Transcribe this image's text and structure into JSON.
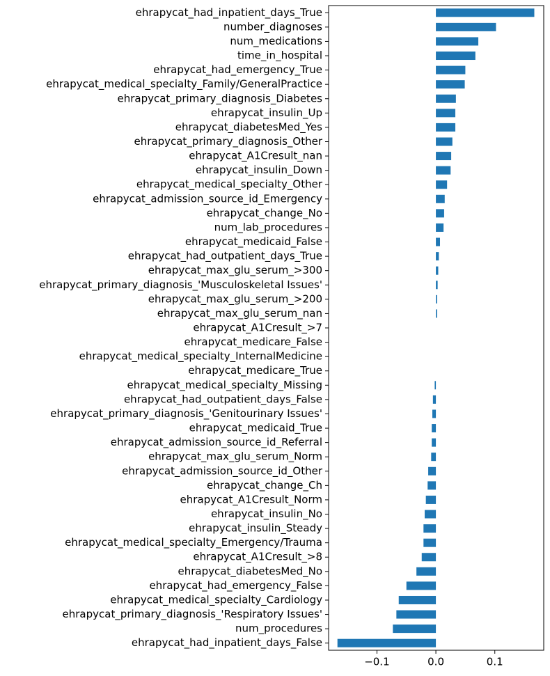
{
  "chart_data": {
    "type": "barh",
    "color": "#1f77b4",
    "categories": [
      "ehrapycat_had_inpatient_days_True",
      "number_diagnoses",
      "num_medications",
      "time_in_hospital",
      "ehrapycat_had_emergency_True",
      "ehrapycat_medical_specialty_Family/GeneralPractice",
      "ehrapycat_primary_diagnosis_Diabetes",
      "ehrapycat_insulin_Up",
      "ehrapycat_diabetesMed_Yes",
      "ehrapycat_primary_diagnosis_Other",
      "ehrapycat_A1Cresult_nan",
      "ehrapycat_insulin_Down",
      "ehrapycat_medical_specialty_Other",
      "ehrapycat_admission_source_id_Emergency",
      "ehrapycat_change_No",
      "num_lab_procedures",
      "ehrapycat_medicaid_False",
      "ehrapycat_had_outpatient_days_True",
      "ehrapycat_max_glu_serum_>300",
      "ehrapycat_primary_diagnosis_'Musculoskeletal Issues'",
      "ehrapycat_max_glu_serum_>200",
      "ehrapycat_max_glu_serum_nan",
      "ehrapycat_A1Cresult_>7",
      "ehrapycat_medicare_False",
      "ehrapycat_medical_specialty_InternalMedicine",
      "ehrapycat_medicare_True",
      "ehrapycat_medical_specialty_Missing",
      "ehrapycat_had_outpatient_days_False",
      "ehrapycat_primary_diagnosis_'Genitourinary Issues'",
      "ehrapycat_medicaid_True",
      "ehrapycat_admission_source_id_Referral",
      "ehrapycat_max_glu_serum_Norm",
      "ehrapycat_admission_source_id_Other",
      "ehrapycat_change_Ch",
      "ehrapycat_A1Cresult_Norm",
      "ehrapycat_insulin_No",
      "ehrapycat_insulin_Steady",
      "ehrapycat_medical_specialty_Emergency/Trauma",
      "ehrapycat_A1Cresult_>8",
      "ehrapycat_diabetesMed_No",
      "ehrapycat_had_emergency_False",
      "ehrapycat_medical_specialty_Cardiology",
      "ehrapycat_primary_diagnosis_'Respiratory Issues'",
      "num_procedures",
      "ehrapycat_had_inpatient_days_False"
    ],
    "values": [
      0.167,
      0.102,
      0.072,
      0.067,
      0.05,
      0.049,
      0.034,
      0.033,
      0.033,
      0.028,
      0.026,
      0.025,
      0.019,
      0.015,
      0.014,
      0.013,
      0.007,
      0.005,
      0.004,
      0.003,
      0.002,
      0.002,
      0,
      0,
      0,
      0,
      -0.002,
      -0.005,
      -0.006,
      -0.007,
      -0.007,
      -0.008,
      -0.013,
      -0.014,
      -0.017,
      -0.019,
      -0.021,
      -0.021,
      -0.024,
      -0.033,
      -0.05,
      -0.063,
      -0.067,
      -0.073,
      -0.167
    ],
    "xlim": [
      -0.182,
      0.183
    ],
    "xticks": [
      {
        "value": -0.1,
        "label": "−0.1"
      },
      {
        "value": 0,
        "label": "0.0"
      },
      {
        "value": 0.1,
        "label": "0.1"
      }
    ]
  }
}
